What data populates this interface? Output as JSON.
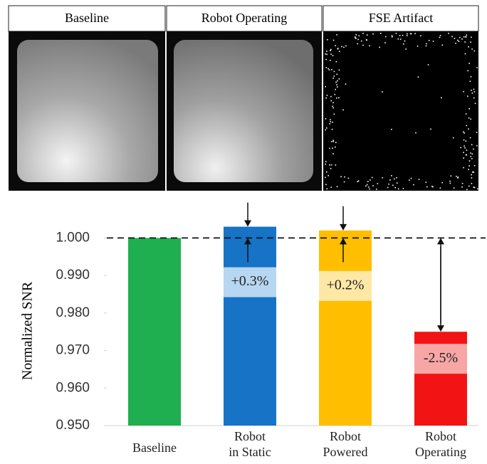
{
  "panels": [
    {
      "label": "Baseline"
    },
    {
      "label": "Robot Operating"
    },
    {
      "label": "FSE Artifact"
    }
  ],
  "chart_data": {
    "type": "bar",
    "y_label": "Normalized SNR",
    "categories": [
      "Baseline",
      "Robot\nin Static",
      "Robot\nPowered",
      "Robot\nOperating"
    ],
    "values": [
      1.0,
      1.003,
      1.002,
      0.975
    ],
    "colors": [
      "#1faf50",
      "#1673c6",
      "#ffbf00",
      "#f21414"
    ],
    "annotations": [
      null,
      "+0.3%",
      "+0.2%",
      "-2.5%"
    ],
    "reference_line": 1.0,
    "ylim": [
      0.95,
      1.005
    ],
    "yticks": [
      {
        "value": 0.95,
        "label": "0.950"
      },
      {
        "value": 0.96,
        "label": "0.960"
      },
      {
        "value": 0.97,
        "label": "0.970"
      },
      {
        "value": 0.98,
        "label": "0.980"
      },
      {
        "value": 0.99,
        "label": "0.990"
      },
      {
        "value": 1.0,
        "label": "1.000"
      }
    ]
  }
}
